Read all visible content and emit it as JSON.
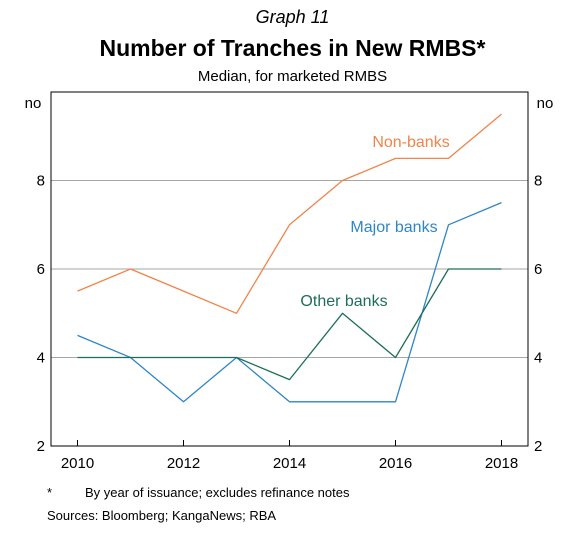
{
  "header": {
    "graph_label": "Graph 11",
    "title": "Number of Tranches in New RMBS*",
    "subtitle": "Median, for marketed RMBS"
  },
  "chart_data": {
    "type": "line",
    "title": "Number of Tranches in New RMBS*",
    "subtitle": "Median, for marketed RMBS",
    "ylabel_left": "no",
    "ylabel_right": "no",
    "xlim": [
      2009.5,
      2018.5
    ],
    "ylim": [
      2,
      10
    ],
    "y_ticks": [
      2,
      4,
      6,
      8
    ],
    "x_ticks": [
      2010,
      2012,
      2014,
      2016,
      2018
    ],
    "gridlines": [
      4,
      6,
      8
    ],
    "grid": true,
    "series": [
      {
        "name": "Non-banks",
        "color": "#f0844a",
        "x": [
          2010,
          2011,
          2012,
          2013,
          2014,
          2015,
          2016,
          2017,
          2018
        ],
        "values": [
          5.5,
          6.0,
          5.5,
          5.0,
          7.0,
          8.0,
          8.5,
          8.5,
          9.5
        ]
      },
      {
        "name": "Major banks",
        "color": "#2f86c6",
        "x": [
          2010,
          2011,
          2012,
          2013,
          2014,
          2015,
          2016,
          2017,
          2018
        ],
        "values": [
          4.5,
          4.0,
          3.0,
          4.0,
          3.0,
          3.0,
          3.0,
          7.0,
          7.5
        ]
      },
      {
        "name": "Other banks",
        "color": "#1e6e5a",
        "x": [
          2010,
          2011,
          2012,
          2013,
          2014,
          2015,
          2016,
          2017,
          2018
        ],
        "values": [
          4.0,
          4.0,
          4.0,
          4.0,
          3.5,
          5.0,
          4.0,
          6.0,
          6.0
        ]
      }
    ]
  },
  "footer": {
    "footnote_mark": "*",
    "footnote_text": "By year of issuance; excludes refinance notes",
    "sources": "Sources:  Bloomberg; KangaNews; RBA"
  }
}
